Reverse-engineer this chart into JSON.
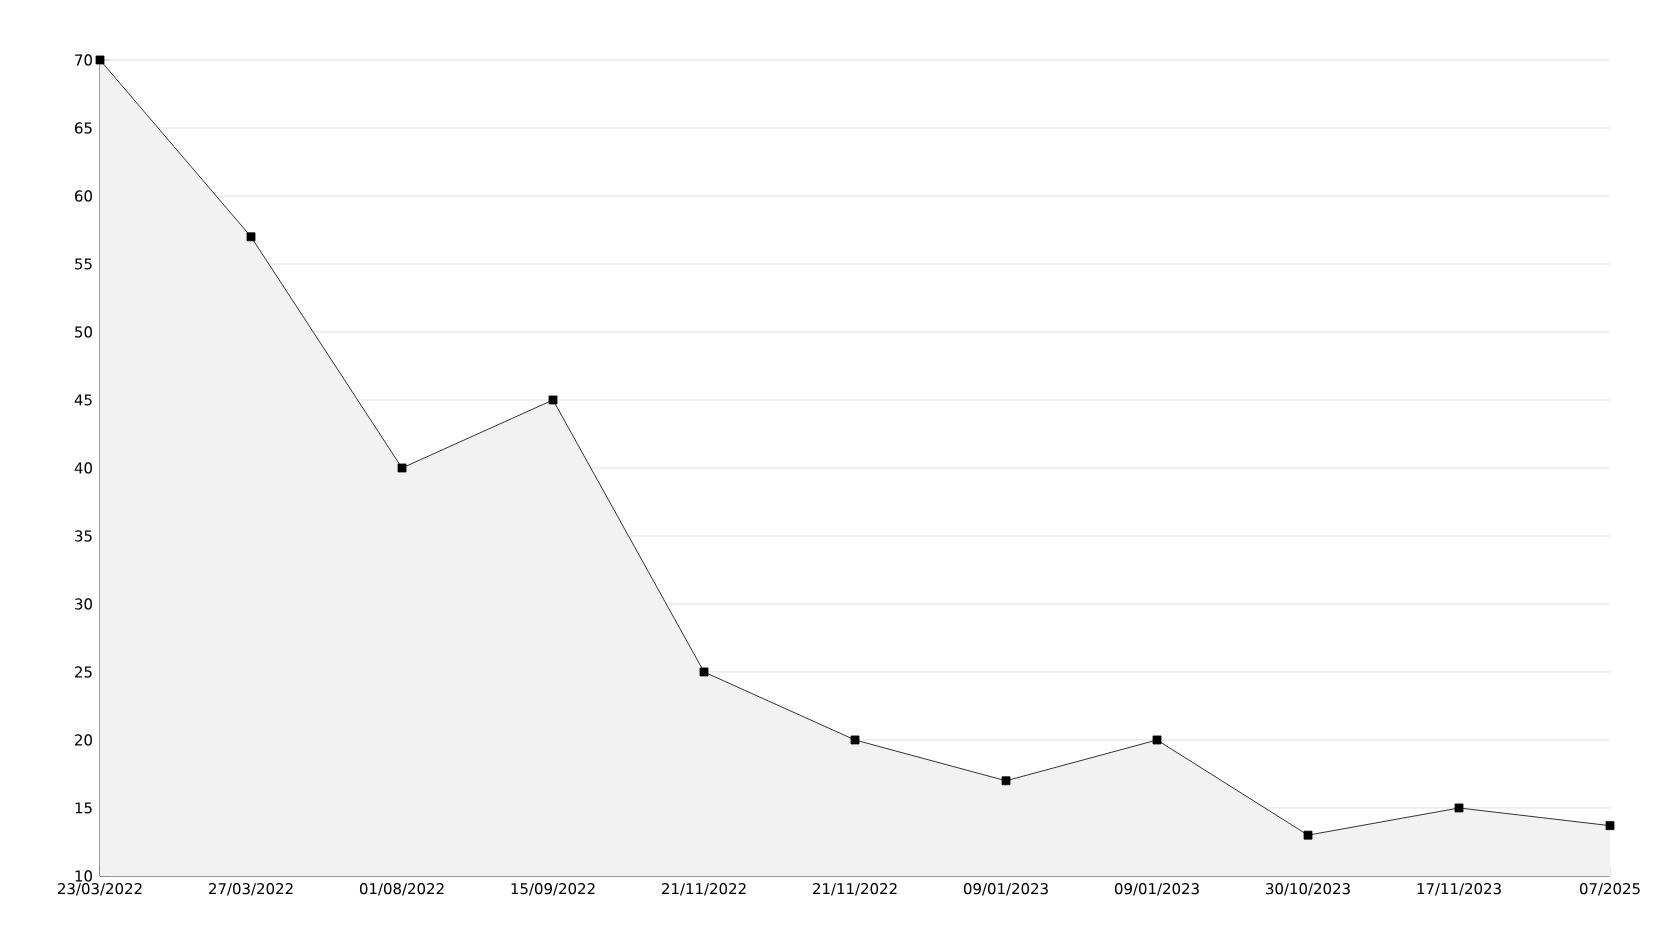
{
  "chart_data": {
    "type": "area",
    "categories": [
      "23/03/2022",
      "27/03/2022",
      "01/08/2022",
      "15/09/2022",
      "21/11/2022",
      "21/11/2022",
      "09/01/2023",
      "09/01/2023",
      "30/10/2023",
      "17/11/2023",
      "07/2025"
    ],
    "values": [
      70,
      57,
      40,
      45,
      25,
      20,
      17,
      20,
      13,
      15,
      13.7
    ],
    "color": "#000000",
    "ylim": [
      10,
      70
    ],
    "yticks": [
      10,
      15,
      20,
      25,
      30,
      35,
      40,
      45,
      50,
      55,
      60,
      65,
      70
    ],
    "grid": "y",
    "marker": "square",
    "line_style": "solid"
  }
}
